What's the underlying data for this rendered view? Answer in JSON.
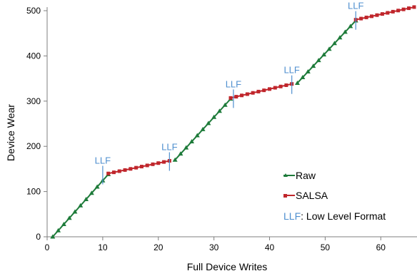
{
  "chart_data": {
    "type": "line",
    "xlabel": "Full Device Writes",
    "ylabel": "Device Wear",
    "xlim": [
      0,
      66
    ],
    "ylim": [
      0,
      500
    ],
    "xticks": [
      0,
      10,
      20,
      30,
      40,
      50,
      60
    ],
    "yticks": [
      0,
      100,
      200,
      300,
      400,
      500
    ],
    "legend_position": "bottom-right",
    "series": [
      {
        "name": "Raw",
        "color": "#1e7b3a",
        "marker": "triangle",
        "segments": [
          [
            [
              1,
              0
            ],
            [
              11,
              138
            ]
          ],
          [
            [
              23,
              170
            ],
            [
              33,
              305
            ]
          ],
          [
            [
              45,
              340
            ],
            [
              55.5,
              478
            ]
          ]
        ]
      },
      {
        "name": "SALSA",
        "color": "#c0262c",
        "marker": "square",
        "segments": [
          [
            [
              11,
              140
            ],
            [
              22,
              168
            ]
          ],
          [
            [
              33,
              307
            ],
            [
              44,
              338
            ]
          ],
          [
            [
              55.5,
              480
            ],
            [
              66,
              508
            ]
          ]
        ]
      }
    ],
    "annotations": [
      {
        "text": "LLF",
        "x": 10,
        "y": 138,
        "color": "#4f8fcf"
      },
      {
        "text": "LLF",
        "x": 22,
        "y": 168,
        "color": "#4f8fcf"
      },
      {
        "text": "LLF",
        "x": 33.5,
        "y": 307,
        "color": "#4f8fcf"
      },
      {
        "text": "LLF",
        "x": 44,
        "y": 338,
        "color": "#4f8fcf"
      },
      {
        "text": "LLF",
        "x": 55.5,
        "y": 480,
        "color": "#4f8fcf"
      }
    ],
    "legend": {
      "raw_label": "Raw",
      "salsa_label": "SALSA",
      "llf_abbr": "LLF",
      "llf_desc": ": Low Level Format",
      "llf_color": "#4f8fcf"
    }
  }
}
